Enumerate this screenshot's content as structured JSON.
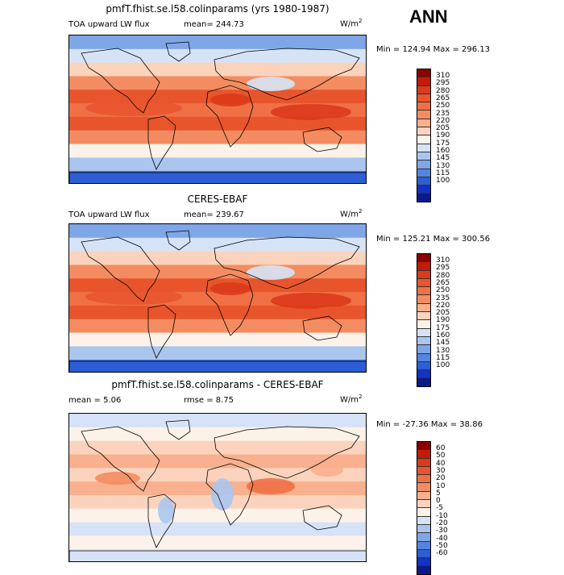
{
  "season": "ANN",
  "panels": [
    {
      "title": "pmfT.fhist.se.l58.colinparams (yrs 1980-1987)",
      "variable": "TOA upward LW flux",
      "stat_left": "",
      "stat_mid": "mean= 244.73",
      "units": "W/m",
      "units_sup": "2",
      "minmax": "Min = 124.94 Max = 296.13",
      "levels": [
        "310",
        "295",
        "280",
        "265",
        "250",
        "235",
        "220",
        "205",
        "190",
        "175",
        "160",
        "145",
        "130",
        "115",
        "100"
      ],
      "kind": "model"
    },
    {
      "title": "CERES-EBAF",
      "variable": "TOA upward LW flux",
      "stat_left": "",
      "stat_mid": "mean= 239.67",
      "units": "W/m",
      "units_sup": "2",
      "minmax": "Min = 125.21 Max = 300.56",
      "levels": [
        "310",
        "295",
        "280",
        "265",
        "250",
        "235",
        "220",
        "205",
        "190",
        "175",
        "160",
        "145",
        "130",
        "115",
        "100"
      ],
      "kind": "obs"
    },
    {
      "title": "pmfT.fhist.se.l58.colinparams - CERES-EBAF",
      "variable": "",
      "stat_left": "mean =   5.06",
      "stat_mid": "rmse =   8.75",
      "units": "W/m",
      "units_sup": "2",
      "minmax": "Min = -27.36 Max =  38.86",
      "levels": [
        "60",
        "50",
        "40",
        "30",
        "20",
        "10",
        "5",
        "0",
        "-5",
        "-10",
        "-20",
        "-30",
        "-40",
        "-50",
        "-60"
      ],
      "kind": "diff"
    }
  ],
  "colors": {
    "abs_scale": [
      "#8b0000",
      "#c41a0a",
      "#dc3a1a",
      "#e8552d",
      "#f07045",
      "#f48c62",
      "#f8b08e",
      "#fbd3bd",
      "#fdf2ea",
      "#d6e3f6",
      "#aac6ee",
      "#7fa6e6",
      "#5584df",
      "#2d5ed6",
      "#1532c4",
      "#0a1a8c"
    ],
    "diff_scale": [
      "#8b0000",
      "#c41a0a",
      "#dc3a1a",
      "#e8552d",
      "#f07045",
      "#f48c62",
      "#f8b08e",
      "#fbd3bd",
      "#fdf2ea",
      "#d6e3f6",
      "#aac6ee",
      "#7fa6e6",
      "#5584df",
      "#2d5ed6",
      "#1532c4",
      "#0a1a8c"
    ]
  }
}
